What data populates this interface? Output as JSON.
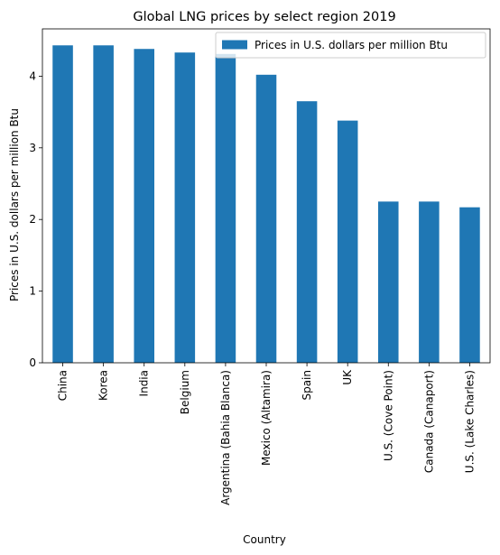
{
  "chart_data": {
    "type": "bar",
    "title": "Global LNG prices by select region 2019",
    "xlabel": "Country",
    "ylabel": "Prices in U.S. dollars per million Btu",
    "ylim": [
      0,
      4.66
    ],
    "yticks": [
      0,
      1,
      2,
      3,
      4
    ],
    "grid": false,
    "legend_position": "top-right",
    "colors": {
      "bar": "#1f77b4"
    },
    "categories": [
      "China",
      "Korea",
      "India",
      "Belgium",
      "Argentina (Bahia Blanca)",
      "Mexico (Altamira)",
      "Spain",
      "UK",
      "U.S. (Cove Point)",
      "Canada (Canaport)",
      "U.S. (Lake Charles)"
    ],
    "series": [
      {
        "name": "Prices in U.S. dollars per million Btu",
        "values": [
          4.43,
          4.43,
          4.38,
          4.33,
          4.31,
          4.02,
          3.65,
          3.38,
          2.25,
          2.25,
          2.17
        ]
      }
    ]
  }
}
